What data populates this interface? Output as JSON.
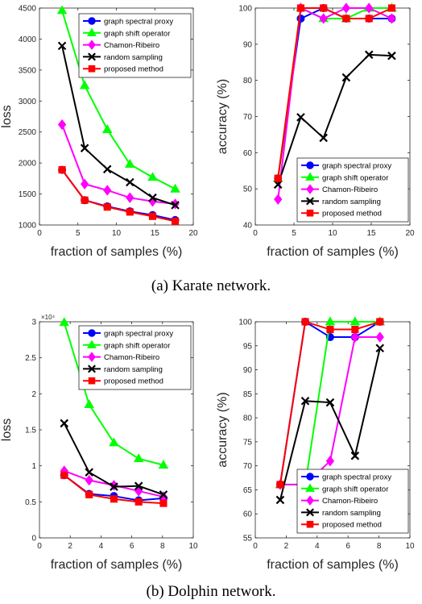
{
  "figure": {
    "caption_a": "(a) Karate network.",
    "caption_b": "(b) Dolphin network."
  },
  "colors": {
    "graph spectral proxy": "#0000ff",
    "graph shift operator": "#00ff00",
    "Chamon-Ribeiro": "#ff00ff",
    "random sampling": "#000000",
    "proposed method": "#ff0000"
  },
  "markers": {
    "graph spectral proxy": "circle",
    "graph shift operator": "triangle",
    "Chamon-Ribeiro": "diamond",
    "random sampling": "x",
    "proposed method": "square"
  },
  "chart_data": [
    {
      "id": "karate-loss",
      "type": "line",
      "xlabel": "fraction of samples (%)",
      "ylabel": "loss",
      "xlim": [
        0,
        20
      ],
      "ylim": [
        1000,
        4500
      ],
      "xticks": [
        0,
        5,
        10,
        15,
        20
      ],
      "yticks": [
        1000,
        1500,
        2000,
        2500,
        3000,
        3500,
        4000,
        4500
      ],
      "legend_position": "top-right",
      "series": [
        {
          "name": "graph spectral proxy",
          "x": [
            2.94,
            5.88,
            8.82,
            11.76,
            14.71,
            17.65
          ],
          "y": [
            1890,
            1400,
            1300,
            1220,
            1160,
            1080
          ]
        },
        {
          "name": "graph shift operator",
          "x": [
            2.94,
            5.88,
            8.82,
            11.76,
            14.71,
            17.65
          ],
          "y": [
            4460,
            3250,
            2540,
            1980,
            1770,
            1580
          ]
        },
        {
          "name": "Chamon-Ribeiro",
          "x": [
            2.94,
            5.88,
            8.82,
            11.76,
            14.71,
            17.65
          ],
          "y": [
            2620,
            1660,
            1560,
            1440,
            1380,
            1340
          ]
        },
        {
          "name": "random sampling",
          "x": [
            2.94,
            5.88,
            8.82,
            11.76,
            14.71,
            17.65
          ],
          "y": [
            3890,
            2240,
            1900,
            1690,
            1440,
            1320
          ]
        },
        {
          "name": "proposed method",
          "x": [
            2.94,
            5.88,
            8.82,
            11.76,
            14.71,
            17.65
          ],
          "y": [
            1890,
            1400,
            1290,
            1210,
            1140,
            1060
          ]
        }
      ]
    },
    {
      "id": "karate-accuracy",
      "type": "line",
      "xlabel": "fraction of samples (%)",
      "ylabel": "accuracy (%)",
      "xlim": [
        0,
        20
      ],
      "ylim": [
        40,
        100
      ],
      "xticks": [
        0,
        5,
        10,
        15,
        20
      ],
      "yticks": [
        40,
        50,
        60,
        70,
        80,
        90,
        100
      ],
      "legend_position": "bottom-right",
      "series": [
        {
          "name": "graph spectral proxy",
          "x": [
            2.94,
            5.88,
            8.82,
            11.76,
            14.71,
            17.65
          ],
          "y": [
            52.9,
            97.1,
            100,
            97.1,
            97.1,
            97.1
          ]
        },
        {
          "name": "graph shift operator",
          "x": [
            2.94,
            5.88,
            8.82,
            11.76,
            14.71,
            17.65
          ],
          "y": [
            52.9,
            100,
            97.1,
            97.1,
            100,
            100
          ]
        },
        {
          "name": "Chamon-Ribeiro",
          "x": [
            2.94,
            5.88,
            8.82,
            11.76,
            14.71,
            17.65
          ],
          "y": [
            47.1,
            100,
            97.1,
            100,
            100,
            97.1
          ]
        },
        {
          "name": "random sampling",
          "x": [
            2.94,
            5.88,
            8.82,
            11.76,
            14.71,
            17.65
          ],
          "y": [
            51.2,
            69.8,
            64.1,
            80.8,
            87.1,
            86.8
          ]
        },
        {
          "name": "proposed method",
          "x": [
            2.94,
            5.88,
            8.82,
            11.76,
            14.71,
            17.65
          ],
          "y": [
            52.9,
            100,
            100,
            97.1,
            97.1,
            100
          ]
        }
      ]
    },
    {
      "id": "dolphin-loss",
      "type": "line",
      "xlabel": "fraction of samples (%)",
      "ylabel": "loss",
      "xlim": [
        0,
        10
      ],
      "ylim": [
        0,
        3
      ],
      "xticks": [
        0,
        2,
        4,
        6,
        8,
        10
      ],
      "yticks": [
        0,
        0.5,
        1,
        1.5,
        2,
        2.5,
        3
      ],
      "ytick_labels": [
        "0",
        "0.5",
        "1",
        "1.5",
        "2",
        "2.5",
        "3"
      ],
      "y_exponent_label": "×10⁴",
      "legend_position": "top-right",
      "series": [
        {
          "name": "graph spectral proxy",
          "x": [
            1.61,
            3.23,
            4.84,
            6.45,
            8.06
          ],
          "y": [
            0.87,
            0.61,
            0.58,
            0.52,
            0.55
          ]
        },
        {
          "name": "graph shift operator",
          "x": [
            1.61,
            3.23,
            4.84,
            6.45,
            8.06
          ],
          "y": [
            2.99,
            1.85,
            1.32,
            1.1,
            1.01
          ]
        },
        {
          "name": "Chamon-Ribeiro",
          "x": [
            1.61,
            3.23,
            4.84,
            6.45,
            8.06
          ],
          "y": [
            0.93,
            0.8,
            0.73,
            0.65,
            0.57
          ]
        },
        {
          "name": "random sampling",
          "x": [
            1.61,
            3.23,
            4.84,
            6.45,
            8.06
          ],
          "y": [
            1.59,
            0.91,
            0.71,
            0.72,
            0.6
          ]
        },
        {
          "name": "proposed method",
          "x": [
            1.61,
            3.23,
            4.84,
            6.45,
            8.06
          ],
          "y": [
            0.87,
            0.6,
            0.54,
            0.5,
            0.48
          ]
        }
      ]
    },
    {
      "id": "dolphin-accuracy",
      "type": "line",
      "xlabel": "fraction of samples (%)",
      "ylabel": "accuracy (%)",
      "xlim": [
        0,
        10
      ],
      "ylim": [
        55,
        100
      ],
      "xticks": [
        0,
        2,
        4,
        6,
        8,
        10
      ],
      "yticks": [
        55,
        60,
        65,
        70,
        75,
        80,
        85,
        90,
        95,
        100
      ],
      "legend_position": "bottom-right",
      "series": [
        {
          "name": "graph spectral proxy",
          "x": [
            1.61,
            3.23,
            4.84,
            6.45,
            8.06
          ],
          "y": [
            66.1,
            100,
            96.8,
            96.8,
            100
          ]
        },
        {
          "name": "graph shift operator",
          "x": [
            1.61,
            3.23,
            4.84,
            6.45,
            8.06
          ],
          "y": [
            66.1,
            66.1,
            100,
            100,
            100
          ]
        },
        {
          "name": "Chamon-Ribeiro",
          "x": [
            1.61,
            3.23,
            4.84,
            6.45,
            8.06
          ],
          "y": [
            66.1,
            66.1,
            71.0,
            96.8,
            96.8
          ]
        },
        {
          "name": "random sampling",
          "x": [
            1.61,
            3.23,
            4.84,
            6.45,
            8.06
          ],
          "y": [
            62.9,
            83.5,
            83.2,
            72.1,
            94.5
          ]
        },
        {
          "name": "proposed method",
          "x": [
            1.61,
            3.23,
            4.84,
            6.45,
            8.06
          ],
          "y": [
            66.1,
            100,
            98.4,
            98.4,
            100
          ]
        }
      ]
    }
  ]
}
